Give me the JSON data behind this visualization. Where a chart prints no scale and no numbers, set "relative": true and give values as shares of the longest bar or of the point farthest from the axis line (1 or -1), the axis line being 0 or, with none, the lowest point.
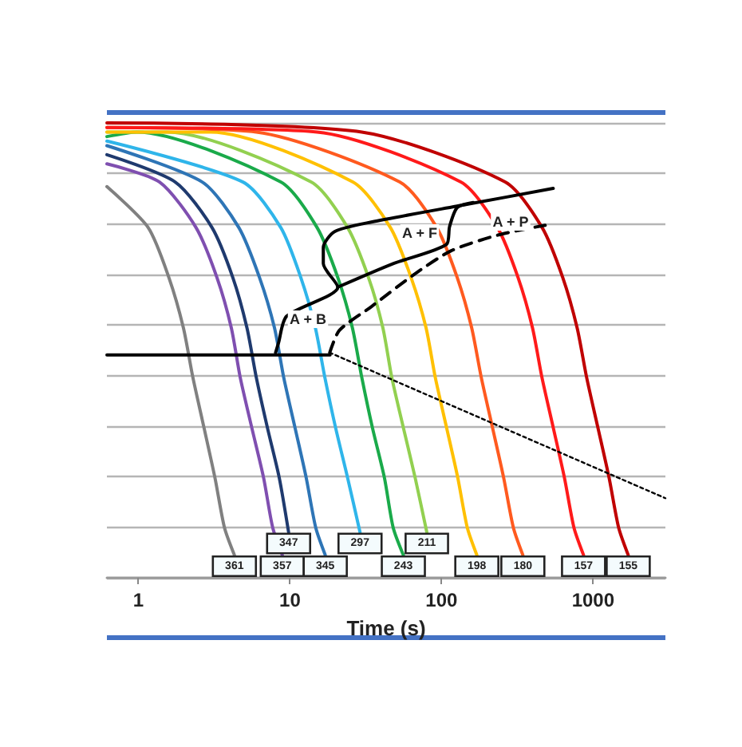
{
  "chart_data": {
    "type": "line",
    "relative": true,
    "log": "x",
    "xlabel": "Time (s)",
    "xlim": [
      0.62,
      3000
    ],
    "xticks": [
      1,
      10,
      100,
      1000
    ],
    "tick_labels": "x",
    "grid": "y",
    "marker": "none",
    "line_style": "solid",
    "series": [
      {
        "color": "#808080",
        "x": [
          0.62,
          1.16,
          1.59,
          1.98,
          2.29,
          2.71,
          3.2,
          3.7,
          4.3
        ],
        "values": [
          0.86,
          0.77,
          0.66,
          0.55,
          0.44,
          0.33,
          0.22,
          0.11,
          0.05
        ]
      },
      {
        "color": "#7f4fb0",
        "x": [
          0.62,
          1.38,
          2.4,
          3.3,
          4.1,
          4.7,
          5.6,
          6.7,
          7.7,
          8.9
        ],
        "values": [
          0.91,
          0.87,
          0.77,
          0.66,
          0.55,
          0.44,
          0.33,
          0.22,
          0.11,
          0.05
        ]
      },
      {
        "color": "#1f3a6e",
        "x": [
          0.62,
          1.75,
          3.06,
          4.2,
          5.2,
          6.0,
          7.1,
          8.5,
          9.8
        ],
        "values": [
          0.93,
          0.87,
          0.77,
          0.66,
          0.55,
          0.44,
          0.33,
          0.22,
          0.1
        ]
      },
      {
        "color": "#2e75b6",
        "x": [
          0.62,
          2.64,
          4.6,
          6.3,
          7.9,
          9.1,
          10.8,
          12.8,
          14.8,
          17.1
        ],
        "values": [
          0.95,
          0.87,
          0.77,
          0.66,
          0.55,
          0.44,
          0.33,
          0.22,
          0.11,
          0.05
        ]
      },
      {
        "color": "#2fb5ea",
        "x": [
          0.62,
          4.9,
          8.7,
          11.8,
          14.7,
          17.0,
          20,
          24,
          29
        ],
        "values": [
          0.96,
          0.87,
          0.77,
          0.66,
          0.55,
          0.44,
          0.33,
          0.22,
          0.1
        ]
      },
      {
        "color": "#1aaa4a",
        "x": [
          0.62,
          0.98,
          8.7,
          15.1,
          20.7,
          25.8,
          29.8,
          35,
          42,
          48,
          56
        ],
        "values": [
          0.97,
          0.98,
          0.87,
          0.77,
          0.66,
          0.55,
          0.44,
          0.33,
          0.22,
          0.11,
          0.05
        ]
      },
      {
        "color": "#92d050",
        "x": [
          0.62,
          1.55,
          13.8,
          24,
          33,
          41,
          47,
          56,
          67,
          80
        ],
        "values": [
          0.98,
          0.98,
          0.87,
          0.77,
          0.66,
          0.55,
          0.44,
          0.33,
          0.22,
          0.1
        ]
      },
      {
        "color": "#ffc000",
        "x": [
          0.62,
          3.0,
          26,
          46,
          63,
          79,
          91,
          108,
          128,
          148,
          171
        ],
        "values": [
          0.98,
          0.98,
          0.87,
          0.77,
          0.66,
          0.55,
          0.44,
          0.33,
          0.22,
          0.11,
          0.05
        ]
      },
      {
        "color": "#ff5a1f",
        "x": [
          0.62,
          6.0,
          53,
          93,
          127,
          158,
          183,
          217,
          257,
          298,
          344
        ],
        "values": [
          0.99,
          0.98,
          0.87,
          0.77,
          0.66,
          0.55,
          0.44,
          0.33,
          0.22,
          0.11,
          0.05
        ]
      },
      {
        "color": "#ff1a1a",
        "x": [
          0.62,
          15.1,
          134,
          234,
          320,
          398,
          460,
          546,
          647,
          748,
          865
        ],
        "values": [
          0.99,
          0.98,
          0.87,
          0.77,
          0.66,
          0.55,
          0.44,
          0.33,
          0.22,
          0.11,
          0.05
        ]
      },
      {
        "color": "#c00000",
        "x": [
          0.62,
          29.8,
          263,
          461,
          631,
          784,
          907,
          1076,
          1275,
          1475,
          1705
        ],
        "values": [
          1.0,
          0.98,
          0.87,
          0.77,
          0.66,
          0.55,
          0.44,
          0.33,
          0.22,
          0.11,
          0.05
        ]
      },
      {
        "color": "#000000",
        "x": [
          0.62,
          18.4
        ],
        "values": [
          0.49,
          0.49
        ]
      },
      {
        "color": "#000000",
        "x": [
          8.04,
          8.4,
          9.5,
          20.7,
          16.6,
          16.6,
          19.7,
          34.4,
          147,
          546
        ],
        "values": [
          0.495,
          0.516,
          0.575,
          0.639,
          0.691,
          0.726,
          0.761,
          0.782,
          0.821,
          0.856
        ]
      },
      {
        "color": "#000000",
        "x": [
          20.7,
          48.3,
          108,
          113,
          127,
          162
        ],
        "values": [
          0.639,
          0.691,
          0.733,
          0.772,
          0.814,
          0.825
        ]
      },
      {
        "color": "#000000",
        "line_style": "dashed",
        "x": [
          18.3,
          21.2,
          34.4,
          66,
          116,
          239,
          483
        ],
        "values": [
          0.495,
          0.544,
          0.596,
          0.667,
          0.719,
          0.754,
          0.775
        ]
      },
      {
        "color": "#000000",
        "line_style": "dotted",
        "x": [
          18.3,
          3000
        ],
        "values": [
          0.495,
          0.175
        ]
      }
    ],
    "annotations": [
      "A + B",
      "A + F",
      "A + P",
      {
        "text": "361",
        "x": 4.3,
        "y": 0.05
      },
      {
        "text": "357",
        "x": 8.9,
        "y": 0.05
      },
      {
        "text": "347",
        "x": 9.8,
        "y": 0.1
      },
      {
        "text": "345",
        "x": 17.1,
        "y": 0.05
      },
      {
        "text": "297",
        "x": 29,
        "y": 0.1
      },
      {
        "text": "243",
        "x": 56,
        "y": 0.05
      },
      {
        "text": "211",
        "x": 80,
        "y": 0.1
      },
      {
        "text": "198",
        "x": 171,
        "y": 0.05
      },
      {
        "text": "180",
        "x": 344,
        "y": 0.05
      },
      {
        "text": "157",
        "x": 865,
        "y": 0.05
      },
      {
        "text": "155",
        "x": 1705,
        "y": 0.05
      }
    ]
  }
}
